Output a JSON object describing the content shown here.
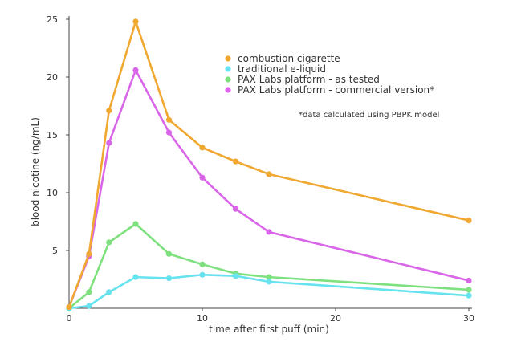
{
  "chart_data": {
    "type": "line",
    "xlabel": "time after first puff (min)",
    "ylabel": "blood nicotine (ng/mL)",
    "xlim": [
      0,
      30
    ],
    "ylim": [
      0,
      25
    ],
    "xticks": [
      0,
      10,
      20,
      30
    ],
    "yticks": [
      5,
      10,
      15,
      20,
      25
    ],
    "grid": false,
    "legend_position": "top-right",
    "annotation": "*data calculated using PBPK model",
    "series": [
      {
        "name": "combustion cigarette",
        "color": "#f0a830",
        "x": [
          0,
          1.5,
          3,
          5,
          7.5,
          10,
          12.5,
          15,
          30
        ],
        "y": [
          0.1,
          4.7,
          17.1,
          24.8,
          16.3,
          13.9,
          12.7,
          11.6,
          7.6
        ]
      },
      {
        "name": "traditional e-liquid",
        "color": "#66e3ee",
        "x": [
          0,
          1.5,
          3,
          5,
          7.5,
          10,
          12.5,
          15,
          30
        ],
        "y": [
          0,
          0.2,
          1.4,
          2.7,
          2.6,
          2.9,
          2.8,
          2.3,
          1.1
        ]
      },
      {
        "name": "PAX Labs platform - as tested",
        "color": "#7ee07e",
        "x": [
          0,
          1.5,
          3,
          5,
          7.5,
          10,
          12.5,
          15,
          30
        ],
        "y": [
          0,
          1.4,
          5.7,
          7.3,
          4.7,
          3.8,
          3.0,
          2.7,
          1.6
        ]
      },
      {
        "name": "PAX Labs platform - commercial version*",
        "color": "#d966e8",
        "x": [
          0,
          1.5,
          3,
          5,
          7.5,
          10,
          12.5,
          15,
          30
        ],
        "y": [
          0.1,
          4.5,
          14.3,
          20.6,
          15.2,
          11.3,
          8.6,
          6.6,
          2.4
        ]
      }
    ]
  }
}
